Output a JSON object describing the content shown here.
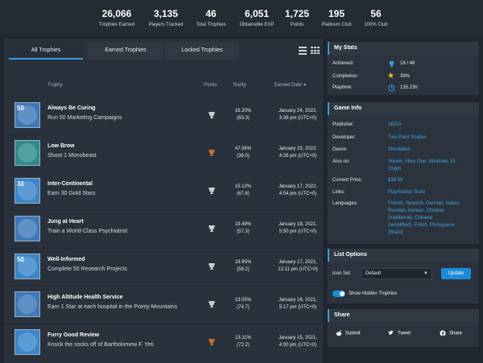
{
  "stats": [
    {
      "num": "26,066",
      "lbl": "Trophies Earned"
    },
    {
      "num": "3,135",
      "lbl": "Players Tracked"
    },
    {
      "num": "46",
      "lbl": "Total Trophies"
    },
    {
      "num": "6,051",
      "lbl": "Obtainable EXP"
    },
    {
      "num": "1,725",
      "lbl": "Points"
    },
    {
      "num": "195",
      "lbl": "Platinum Club"
    },
    {
      "num": "56",
      "lbl": "100% Club"
    }
  ],
  "tabs": [
    "All Trophies",
    "Earned Trophies",
    "Locked Trophies"
  ],
  "columns": {
    "trophy": "Trophy",
    "points": "Points",
    "rarity": "Rarity",
    "earned": "Earned Date"
  },
  "trophies": [
    {
      "name": "Always Be Curing",
      "desc": "Run 50 Marketing Campaigns",
      "grade": "silver",
      "rarity": "16.20%",
      "ratio": "(63.3)",
      "date": "January 24, 2022,",
      "time": "3:38 pm (UTC+0)",
      "badge": "50",
      "color": "#3f78b8"
    },
    {
      "name": "Low Brow",
      "desc": "Shoot 1 Monobeast",
      "grade": "bronze",
      "rarity": "47.56%",
      "ratio": "(38.0)",
      "date": "January 23, 2022,",
      "time": "4:26 pm (UTC+0)",
      "badge": "",
      "color": "#2f8a8a"
    },
    {
      "name": "Inter-Continental",
      "desc": "Earn 30 Gold Stars",
      "grade": "silver",
      "rarity": "15.12%",
      "ratio": "(67.6)",
      "date": "January 17, 2022,",
      "time": "4:04 pm (UTC+0)",
      "badge": "30",
      "color": "#3a86c8"
    },
    {
      "name": "Jung at Heart",
      "desc": "Train a World-Class Psychiatrist",
      "grade": "silver",
      "rarity": "19.49%",
      "ratio": "(57.3)",
      "date": "January 18, 2021,",
      "time": "5:50 pm (UTC+0)",
      "badge": "",
      "color": "#3f78b8"
    },
    {
      "name": "Well-Informed",
      "desc": "Complete 50 Research Projects",
      "grade": "silver",
      "rarity": "18.95%",
      "ratio": "(59.2)",
      "date": "January 17, 2021,",
      "time": "12:11 pm (UTC+0)",
      "badge": "50",
      "color": "#3a86c8"
    },
    {
      "name": "High Altitude Health Service",
      "desc": "Earn 1 Star at each hospital in the Pointy Mountains",
      "grade": "silver",
      "rarity": "13.05%",
      "ratio": "(74.7)",
      "date": "January 16, 2021,",
      "time": "5:17 pm (UTC+0)",
      "badge": "",
      "color": "#3f78b8"
    },
    {
      "name": "Furry Good Review",
      "desc": "Knock the socks off of Bartholomew F. Yeti",
      "grade": "bronze",
      "rarity": "13.11%",
      "ratio": "(72.2)",
      "date": "January 15, 2021,",
      "time": "4:00 pm (UTC+0)",
      "badge": "",
      "color": "#3a86c8"
    }
  ],
  "my_stats": {
    "title": "My Stats",
    "achieved_label": "Achieved:",
    "achieved": "18 / 46",
    "completion_label": "Completion:",
    "completion": "39%",
    "playtime_label": "Playtime:",
    "playtime": "135.23h"
  },
  "game_info": {
    "title": "Game Info",
    "publisher_label": "Publisher:",
    "publisher": "SEGA",
    "developer_label": "Developer:",
    "developer": "Two Point Studios",
    "genre_label": "Genre:",
    "genre": "Simulation",
    "also_label": "Also on:",
    "also_line1": "Steam, Xbox One, Windows 10,",
    "also_line2": "Origin",
    "price_label": "Current Price:",
    "price": "$39.99",
    "links_label": "Links:",
    "links": "PlayStation Store",
    "lang_label": "Languages:",
    "lang_lines": [
      "French, Spanish, German, Italian,",
      "Russian, Korean, Chinese",
      "(traditional), Chinese",
      "(simplified), Polish, Portuguese",
      "(Brazil)"
    ]
  },
  "list_options": {
    "title": "List Options",
    "icon_set_label": "Icon Set",
    "icon_set_value": "Default",
    "update_label": "Update",
    "show_hidden_label": "Show Hidden Trophies"
  },
  "share": {
    "title": "Share",
    "submit": "Submit",
    "tweet": "Tweet",
    "facebook": "Share"
  },
  "colors": {
    "accent": "#1e8bd8",
    "link": "#4aa3df",
    "silver": "#c9cdd2",
    "bronze": "#c8702c"
  }
}
